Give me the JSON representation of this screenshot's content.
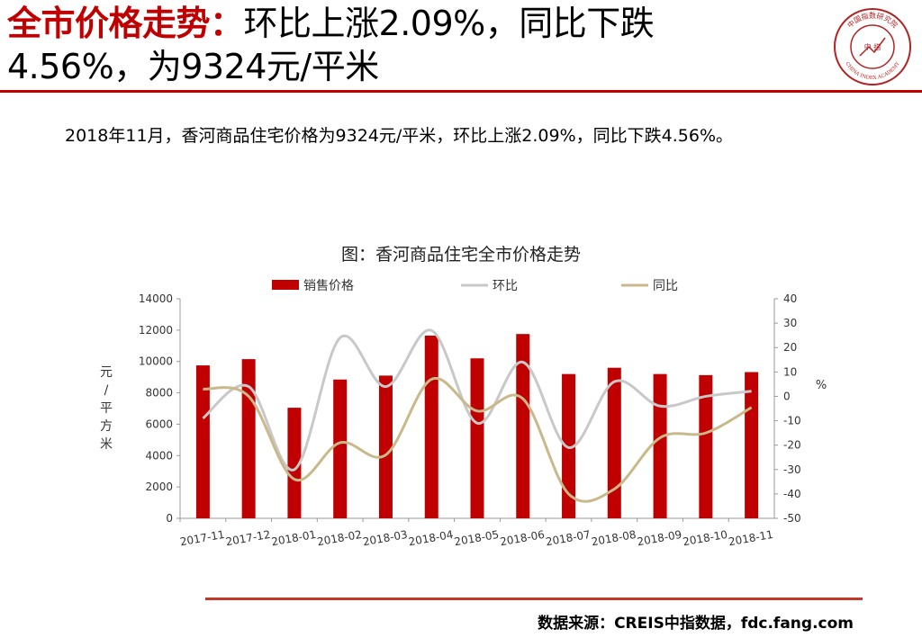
{
  "header": {
    "title_highlight": "全市价格走势：",
    "title_line1_rest": "环比上涨2.09%，同比下跌",
    "title_line2": "4.56%，为9324元/平米"
  },
  "logo": {
    "ring_text": "中国指数研究院",
    "center_text": "中  指",
    "english_text": "CHINA INDEX ACADEMY"
  },
  "summary": "2018年11月，香河商品住宅价格为9324元/平米，环比上涨2.09%，同比下跌4.56%。",
  "source": "数据来源：CREIS中指数据，fdc.fang.com",
  "colors": {
    "accent": "#c00000",
    "bar": "#c00000",
    "mom_line": "#c8c8c8",
    "yoy_line": "#c9b98a"
  },
  "chart_data": {
    "type": "bar",
    "title": "图：香河商品住宅全市价格走势",
    "categories": [
      "2017-11",
      "2017-12",
      "2018-01",
      "2018-02",
      "2018-03",
      "2018-04",
      "2018-05",
      "2018-06",
      "2018-07",
      "2018-08",
      "2018-09",
      "2018-10",
      "2018-11"
    ],
    "series": [
      {
        "name": "销售价格",
        "type": "bar",
        "axis": "left",
        "values": [
          9750,
          10150,
          7050,
          8850,
          9100,
          11650,
          10200,
          11750,
          9200,
          9600,
          9200,
          9130,
          9324
        ]
      },
      {
        "name": "环比",
        "type": "line",
        "axis": "right",
        "values": [
          -9,
          4,
          -30,
          24,
          4,
          27,
          -11,
          14,
          -21,
          6,
          -4,
          0,
          2.09
        ]
      },
      {
        "name": "同比",
        "type": "line",
        "axis": "right",
        "values": [
          3,
          0,
          -34,
          -19,
          -24,
          7,
          -6,
          -1,
          -40,
          -38,
          -17,
          -15,
          -4.56
        ]
      }
    ],
    "ylabel": "元/平方米",
    "ylabel_right": "%",
    "ylim": [
      0,
      14000
    ],
    "yticks": [
      0,
      2000,
      4000,
      6000,
      8000,
      10000,
      12000,
      14000
    ],
    "ylim_right": [
      -50,
      40
    ],
    "yticks_right": [
      -50,
      -40,
      -30,
      -20,
      -10,
      0,
      10,
      20,
      30,
      40
    ],
    "legend_position": "top",
    "grid": false
  }
}
